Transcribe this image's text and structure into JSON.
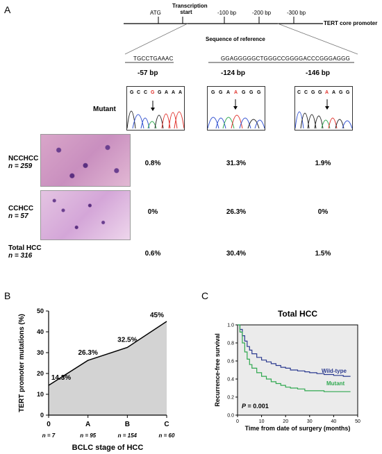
{
  "panels": {
    "a": "A",
    "b": "B",
    "c": "C"
  },
  "promoter": {
    "title": "TERT core promoter",
    "marks": [
      "ATG",
      "Transcription start",
      "-100 bp",
      "-200 bp",
      "-300 bp"
    ],
    "reference_label": "Sequence of reference",
    "ref_seq_left": "TGCCTGAAAC",
    "ref_seq_right": "GGAGGGGGCTGGGCCGGGGACCCGGGAGGG"
  },
  "mutations": {
    "positions": [
      "-57 bp",
      "-124 bp",
      "-146 bp"
    ],
    "mutant_label": "Mutant",
    "seq1": [
      "G",
      "C",
      "C",
      "G",
      "G",
      "A",
      "A",
      "A"
    ],
    "seq2": [
      "G",
      "G",
      "A",
      "A",
      "G",
      "G",
      "G"
    ],
    "seq3": [
      "C",
      "C",
      "G",
      "G",
      "A",
      "A",
      "G",
      "G"
    ]
  },
  "groups": [
    {
      "name": "NCCHCC",
      "n": "n = 259",
      "values": [
        "0.8%",
        "31.3%",
        "1.9%"
      ]
    },
    {
      "name": "CCHCC",
      "n": "n = 57",
      "values": [
        "0%",
        "26.3%",
        "0%"
      ]
    },
    {
      "name": "Total HCC",
      "n": "n = 316",
      "values": [
        "0.6%",
        "30.4%",
        "1.5%"
      ]
    }
  ],
  "chart_b": {
    "type": "area",
    "categories": [
      "0",
      "A",
      "B",
      "C"
    ],
    "values": [
      14.3,
      26.3,
      32.5,
      45
    ],
    "value_labels": [
      "14.3%",
      "26.3%",
      "32.5%",
      "45%"
    ],
    "n_labels": [
      "n = 7",
      "n = 95",
      "n = 154",
      "n = 60"
    ],
    "xlabel": "BCLC stage of HCC",
    "ylabel": "TERT promoter mutations (%)",
    "yticks": [
      "0",
      "10",
      "20",
      "30",
      "40",
      "50"
    ],
    "ylim": [
      0,
      50
    ],
    "fill_color": "#d3d3d3"
  },
  "chart_c": {
    "type": "line",
    "title": "Total HCC",
    "xlabel": "Time from date of surgery (months)",
    "ylabel": "Recurrence-free survival",
    "xticks": [
      "0",
      "10",
      "20",
      "30",
      "40",
      "50"
    ],
    "yticks": [
      "0.0",
      "0.2",
      "0.4",
      "0.6",
      "0.8",
      "1.0"
    ],
    "xlim": [
      0,
      50
    ],
    "ylim": [
      0,
      1.0
    ],
    "pvalue_label": "P",
    "pvalue_text": " = 0.001",
    "series": [
      {
        "name": "Wild-type",
        "color": "#2b3a8f",
        "x": [
          0,
          1,
          2,
          3,
          4,
          5,
          6,
          8,
          10,
          12,
          14,
          16,
          18,
          20,
          22,
          25,
          28,
          30,
          33,
          36,
          40,
          44,
          47
        ],
        "y": [
          1.0,
          0.95,
          0.88,
          0.82,
          0.76,
          0.72,
          0.68,
          0.64,
          0.61,
          0.59,
          0.57,
          0.55,
          0.53,
          0.52,
          0.5,
          0.49,
          0.48,
          0.47,
          0.46,
          0.45,
          0.44,
          0.43,
          0.43
        ]
      },
      {
        "name": "Mutant",
        "color": "#2fa84f",
        "x": [
          0,
          1,
          2,
          3,
          4,
          5,
          6,
          8,
          10,
          12,
          14,
          16,
          18,
          20,
          22,
          25,
          28,
          32,
          36,
          40,
          44,
          47
        ],
        "y": [
          1.0,
          0.92,
          0.8,
          0.7,
          0.62,
          0.56,
          0.52,
          0.47,
          0.43,
          0.4,
          0.37,
          0.35,
          0.33,
          0.31,
          0.3,
          0.29,
          0.27,
          0.27,
          0.26,
          0.26,
          0.26,
          0.26
        ]
      }
    ]
  }
}
